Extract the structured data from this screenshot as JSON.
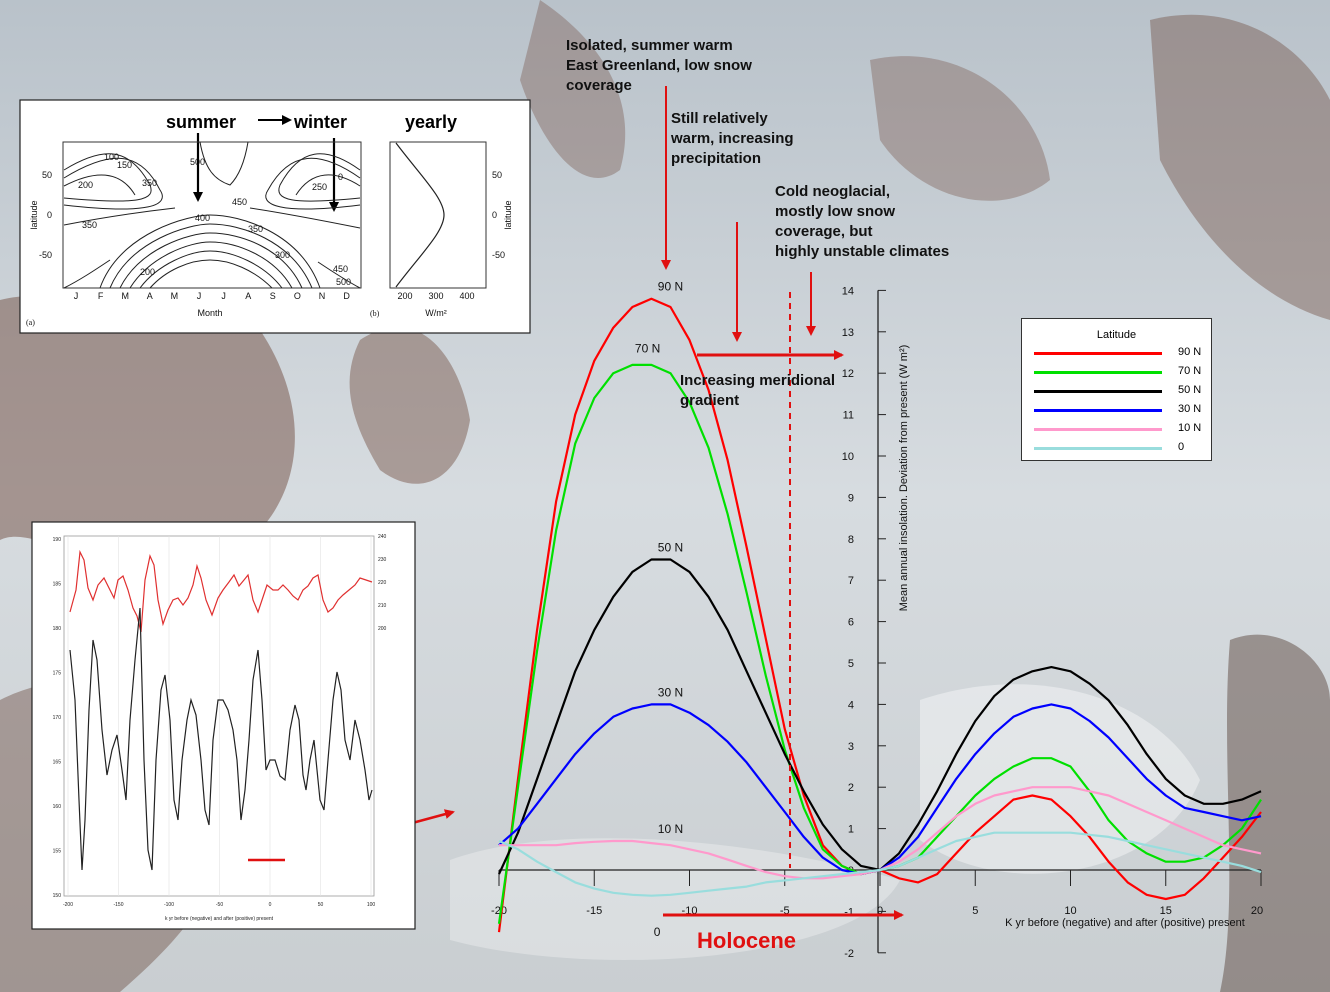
{
  "background": "aerial photo of glaciated mountains, East Greenland",
  "annotations": {
    "summer_warm": "Isolated, summer warm\nEast Greenland, low snow\ncoverage",
    "still_warm": "Still relatively\nwarm, increasing\nprecipitation",
    "neoglacial": "Cold neoglacial,\nmostly low snow\ncoverage, but\nhighly unstable climates",
    "gradient": "Increasing meridional\ngradient",
    "holocene": "Holocene"
  },
  "inset_top": {
    "summer": "summer",
    "winter": "winter",
    "yearly": "yearly",
    "a_ylabel": "latitude",
    "a_xlabel": "Month",
    "a_panel": "(a)",
    "months": [
      "J",
      "F",
      "M",
      "A",
      "M",
      "J",
      "J",
      "A",
      "S",
      "O",
      "N",
      "D"
    ],
    "a_yticks": [
      "50",
      "0",
      "-50"
    ],
    "b_panel": "(b)",
    "b_ylabel": "latitude",
    "b_xticks": [
      "200",
      "300",
      "400"
    ],
    "b_xlabel": "W/m²",
    "b_yticks": [
      "50",
      "0",
      "-50"
    ],
    "contours": [
      "0",
      "100",
      "150",
      "200",
      "250",
      "300",
      "350",
      "400",
      "450",
      "500"
    ]
  },
  "inset_bottom": {
    "xlabel": "k yr before (negative) and after (positive) present",
    "xticks": [
      "-200",
      "-150",
      "-100",
      "-50",
      "0",
      "50",
      "100"
    ],
    "left_yticks": [
      "190",
      "185",
      "180",
      "175",
      "170",
      "165",
      "160",
      "155",
      "150"
    ],
    "right_yticks": [
      "240",
      "230",
      "220",
      "210",
      "200"
    ]
  },
  "chart_data": {
    "type": "line",
    "xlabel": "K yr before (negative) and after (positive) present",
    "ylabel": "Mean annual insolation. Deviation from present (W m²)",
    "xlim": [
      -20,
      20
    ],
    "ylim": [
      -2,
      14
    ],
    "xticks": [
      -20,
      -15,
      -10,
      -5,
      0,
      5,
      10,
      15,
      20
    ],
    "yticks": [
      -2,
      -1,
      0,
      1,
      2,
      3,
      4,
      5,
      6,
      7,
      8,
      9,
      10,
      11,
      12,
      13,
      14
    ],
    "x": [
      -20,
      -19,
      -18,
      -17,
      -16,
      -15,
      -14,
      -13,
      -12,
      -11,
      -10,
      -9,
      -8,
      -7,
      -6,
      -5,
      -4,
      -3,
      -2,
      -1,
      0,
      1,
      2,
      3,
      4,
      5,
      6,
      7,
      8,
      9,
      10,
      11,
      12,
      13,
      14,
      15,
      16,
      17,
      18,
      19,
      20
    ],
    "legend_title": "Latitude",
    "legend_position": "right",
    "series": [
      {
        "name": "90 N",
        "label": "90 N",
        "color": "#ff0000",
        "values": [
          -1.5,
          2.2,
          5.8,
          8.9,
          11.0,
          12.3,
          13.1,
          13.6,
          13.8,
          13.6,
          12.8,
          11.6,
          9.9,
          7.8,
          5.6,
          3.4,
          1.8,
          0.6,
          0.1,
          -0.1,
          0.0,
          -0.2,
          -0.3,
          -0.1,
          0.4,
          0.9,
          1.3,
          1.7,
          1.8,
          1.7,
          1.3,
          0.8,
          0.2,
          -0.3,
          -0.6,
          -0.7,
          -0.6,
          -0.2,
          0.3,
          0.8,
          1.4
        ]
      },
      {
        "name": "70 N",
        "label": "70 N",
        "color": "#00e000",
        "values": [
          -1.3,
          2.0,
          5.3,
          8.2,
          10.3,
          11.4,
          12.0,
          12.2,
          12.2,
          12.0,
          11.3,
          10.2,
          8.6,
          6.7,
          4.7,
          2.9,
          1.5,
          0.5,
          0.1,
          -0.1,
          0.0,
          0.1,
          0.3,
          0.8,
          1.3,
          1.8,
          2.2,
          2.5,
          2.7,
          2.7,
          2.5,
          1.9,
          1.2,
          0.7,
          0.4,
          0.2,
          0.2,
          0.3,
          0.6,
          1.0,
          1.7
        ]
      },
      {
        "name": "50 N",
        "label": "50 N",
        "color": "#000000",
        "values": [
          -0.1,
          0.9,
          2.2,
          3.5,
          4.8,
          5.8,
          6.6,
          7.2,
          7.5,
          7.5,
          7.2,
          6.6,
          5.8,
          4.8,
          3.8,
          2.8,
          1.9,
          1.1,
          0.5,
          0.1,
          0.0,
          0.4,
          1.1,
          1.9,
          2.8,
          3.6,
          4.2,
          4.6,
          4.8,
          4.9,
          4.8,
          4.5,
          4.1,
          3.5,
          2.8,
          2.2,
          1.8,
          1.6,
          1.6,
          1.7,
          1.9
        ]
      },
      {
        "name": "30 N",
        "label": "30 N",
        "color": "#0000ff",
        "values": [
          0.6,
          1.0,
          1.6,
          2.2,
          2.8,
          3.3,
          3.7,
          3.9,
          4.0,
          4.0,
          3.8,
          3.5,
          3.1,
          2.6,
          2.0,
          1.4,
          0.8,
          0.3,
          0.0,
          -0.1,
          0.0,
          0.3,
          0.8,
          1.5,
          2.2,
          2.8,
          3.3,
          3.7,
          3.9,
          4.0,
          3.9,
          3.6,
          3.2,
          2.7,
          2.2,
          1.8,
          1.5,
          1.4,
          1.3,
          1.2,
          1.3
        ]
      },
      {
        "name": "10 N",
        "label": "10 N",
        "color": "#ff99cc",
        "values": [
          0.6,
          0.6,
          0.6,
          0.6,
          0.65,
          0.68,
          0.7,
          0.7,
          0.65,
          0.6,
          0.5,
          0.4,
          0.25,
          0.1,
          -0.05,
          -0.15,
          -0.2,
          -0.2,
          -0.15,
          -0.1,
          0.0,
          0.2,
          0.5,
          0.9,
          1.3,
          1.6,
          1.8,
          1.9,
          2.0,
          2.0,
          2.0,
          1.9,
          1.8,
          1.6,
          1.4,
          1.2,
          1.0,
          0.8,
          0.6,
          0.5,
          0.4
        ]
      },
      {
        "name": "0",
        "label": "0",
        "color": "#99dddd",
        "values": [
          0.7,
          0.5,
          0.2,
          -0.05,
          -0.3,
          -0.45,
          -0.55,
          -0.6,
          -0.62,
          -0.6,
          -0.55,
          -0.5,
          -0.45,
          -0.4,
          -0.3,
          -0.25,
          -0.2,
          -0.15,
          -0.1,
          -0.05,
          0.0,
          0.1,
          0.3,
          0.5,
          0.7,
          0.8,
          0.9,
          0.9,
          0.9,
          0.9,
          0.9,
          0.85,
          0.8,
          0.7,
          0.6,
          0.5,
          0.4,
          0.3,
          0.2,
          0.1,
          -0.05
        ]
      }
    ]
  }
}
